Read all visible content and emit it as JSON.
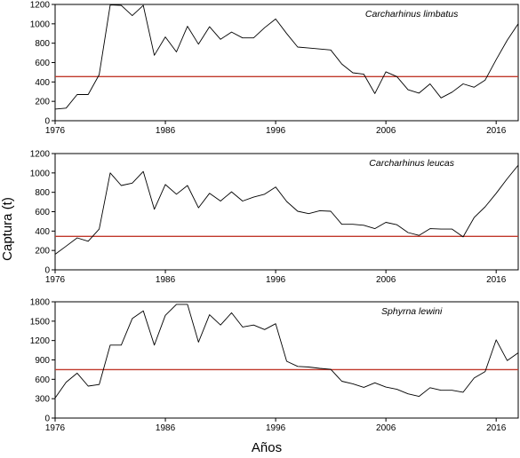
{
  "figure": {
    "ylabel": "Captura (t)",
    "xlabel": "Años",
    "line_color": "#000000",
    "threshold_color": "#c0392b"
  },
  "chart_data": [
    {
      "type": "line",
      "species": "Carcharhinus limbatus",
      "xlim": [
        1976,
        2018
      ],
      "ylim": [
        0,
        1200
      ],
      "xticks": [
        1976,
        1986,
        1996,
        2006,
        2016
      ],
      "yticks": [
        0,
        200,
        400,
        600,
        800,
        1000,
        1200
      ],
      "grid": false,
      "threshold": 455,
      "x": [
        1976,
        1977,
        1978,
        1979,
        1980,
        1981,
        1982,
        1983,
        1984,
        1985,
        1986,
        1987,
        1988,
        1989,
        1990,
        1991,
        1992,
        1993,
        1994,
        1995,
        1996,
        1997,
        1998,
        1999,
        2000,
        2001,
        2002,
        2003,
        2004,
        2005,
        2006,
        2007,
        2008,
        2009,
        2010,
        2011,
        2012,
        2013,
        2014,
        2015,
        2016,
        2017,
        2018
      ],
      "y": [
        120,
        130,
        270,
        270,
        475,
        1195,
        1190,
        1085,
        1190,
        675,
        865,
        710,
        975,
        790,
        970,
        840,
        915,
        855,
        855,
        960,
        1050,
        900,
        760,
        750,
        740,
        730,
        585,
        495,
        480,
        280,
        505,
        455,
        320,
        285,
        380,
        235,
        295,
        380,
        345,
        420,
        630,
        830,
        1000
      ]
    },
    {
      "type": "line",
      "species": "Carcharhinus leucas",
      "xlim": [
        1976,
        2018
      ],
      "ylim": [
        0,
        1200
      ],
      "xticks": [
        1976,
        1986,
        1996,
        2006,
        2016
      ],
      "yticks": [
        0,
        200,
        400,
        600,
        800,
        1000,
        1200
      ],
      "grid": false,
      "threshold": 345,
      "x": [
        1976,
        1977,
        1978,
        1979,
        1980,
        1981,
        1982,
        1983,
        1984,
        1985,
        1986,
        1987,
        1988,
        1989,
        1990,
        1991,
        1992,
        1993,
        1994,
        1995,
        1996,
        1997,
        1998,
        1999,
        2000,
        2001,
        2002,
        2003,
        2004,
        2005,
        2006,
        2007,
        2008,
        2009,
        2010,
        2011,
        2012,
        2013,
        2014,
        2015,
        2016,
        2017,
        2018
      ],
      "y": [
        160,
        245,
        330,
        295,
        420,
        1000,
        870,
        895,
        1015,
        625,
        880,
        780,
        870,
        640,
        790,
        710,
        805,
        710,
        750,
        780,
        855,
        705,
        605,
        580,
        610,
        605,
        470,
        470,
        460,
        425,
        490,
        465,
        385,
        355,
        425,
        420,
        420,
        340,
        540,
        650,
        790,
        940,
        1080
      ]
    },
    {
      "type": "line",
      "species": "Sphyrna lewini",
      "xlim": [
        1976,
        2018
      ],
      "ylim": [
        0,
        1800
      ],
      "xticks": [
        1976,
        1986,
        1996,
        2006,
        2016
      ],
      "yticks": [
        0,
        300,
        600,
        900,
        1200,
        1500,
        1800
      ],
      "grid": false,
      "threshold": 750,
      "x": [
        1976,
        1977,
        1978,
        1979,
        1980,
        1981,
        1982,
        1983,
        1984,
        1985,
        1986,
        1987,
        1988,
        1989,
        1990,
        1991,
        1992,
        1993,
        1994,
        1995,
        1996,
        1997,
        1998,
        1999,
        2000,
        2001,
        2002,
        2003,
        2004,
        2005,
        2006,
        2007,
        2008,
        2009,
        2010,
        2011,
        2012,
        2013,
        2014,
        2015,
        2016,
        2017,
        2018
      ],
      "y": [
        310,
        555,
        695,
        495,
        520,
        1130,
        1130,
        1540,
        1660,
        1130,
        1590,
        1760,
        1760,
        1175,
        1600,
        1440,
        1630,
        1410,
        1440,
        1370,
        1460,
        880,
        800,
        790,
        770,
        755,
        570,
        530,
        475,
        545,
        480,
        445,
        375,
        335,
        470,
        430,
        430,
        400,
        620,
        720,
        1210,
        890,
        1010
      ]
    }
  ]
}
